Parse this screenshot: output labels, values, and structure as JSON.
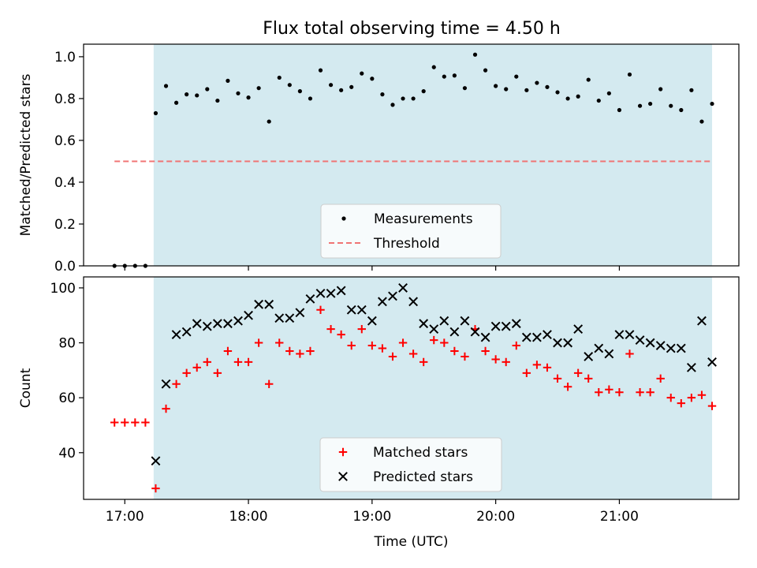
{
  "chart_data": [
    {
      "type": "scatter",
      "title": "Flux total observing time = 4.50 h",
      "xlabel": "",
      "ylabel": "Matched/Predicted stars",
      "ylim": [
        0,
        1.06
      ],
      "yticks": [
        "0.0",
        "0.2",
        "0.4",
        "0.6",
        "0.8",
        "1.0"
      ],
      "xlim": [
        "16:40",
        "21:58"
      ],
      "xticks": [
        "17:00",
        "18:00",
        "19:00",
        "20:00",
        "21:00"
      ],
      "show_xtick_labels": false,
      "shaded_interval": {
        "start": "17:14",
        "end": "21:45",
        "color": "#d4eaf0"
      },
      "legend_position": "lower-center",
      "series": [
        {
          "name": "Measurements",
          "marker": "dot",
          "color": "#000000",
          "points": [
            [
              "16:55",
              0.0
            ],
            [
              "17:00",
              0.0
            ],
            [
              "17:05",
              0.0
            ],
            [
              "17:10",
              0.0
            ],
            [
              "17:15",
              0.73
            ],
            [
              "17:20",
              0.86
            ],
            [
              "17:25",
              0.78
            ],
            [
              "17:30",
              0.82
            ],
            [
              "17:35",
              0.815
            ],
            [
              "17:40",
              0.845
            ],
            [
              "17:45",
              0.79
            ],
            [
              "17:50",
              0.885
            ],
            [
              "17:55",
              0.825
            ],
            [
              "18:00",
              0.805
            ],
            [
              "18:05",
              0.85
            ],
            [
              "18:10",
              0.69
            ],
            [
              "18:15",
              0.9
            ],
            [
              "18:20",
              0.865
            ],
            [
              "18:25",
              0.835
            ],
            [
              "18:30",
              0.8
            ],
            [
              "18:35",
              0.935
            ],
            [
              "18:40",
              0.865
            ],
            [
              "18:45",
              0.84
            ],
            [
              "18:50",
              0.855
            ],
            [
              "18:55",
              0.92
            ],
            [
              "19:00",
              0.895
            ],
            [
              "19:05",
              0.82
            ],
            [
              "19:10",
              0.77
            ],
            [
              "19:15",
              0.8
            ],
            [
              "19:20",
              0.8
            ],
            [
              "19:25",
              0.835
            ],
            [
              "19:30",
              0.95
            ],
            [
              "19:35",
              0.905
            ],
            [
              "19:40",
              0.91
            ],
            [
              "19:45",
              0.85
            ],
            [
              "19:50",
              1.01
            ],
            [
              "19:55",
              0.935
            ],
            [
              "20:00",
              0.86
            ],
            [
              "20:05",
              0.845
            ],
            [
              "20:10",
              0.905
            ],
            [
              "20:15",
              0.84
            ],
            [
              "20:20",
              0.875
            ],
            [
              "20:25",
              0.855
            ],
            [
              "20:30",
              0.83
            ],
            [
              "20:35",
              0.8
            ],
            [
              "20:40",
              0.81
            ],
            [
              "20:45",
              0.89
            ],
            [
              "20:50",
              0.79
            ],
            [
              "20:55",
              0.825
            ],
            [
              "21:00",
              0.745
            ],
            [
              "21:05",
              0.915
            ],
            [
              "21:10",
              0.765
            ],
            [
              "21:15",
              0.775
            ],
            [
              "21:20",
              0.845
            ],
            [
              "21:25",
              0.765
            ],
            [
              "21:30",
              0.745
            ],
            [
              "21:35",
              0.84
            ],
            [
              "21:40",
              0.69
            ],
            [
              "21:45",
              0.775
            ]
          ]
        },
        {
          "name": "Threshold",
          "line": "dashed",
          "color": "#f07474",
          "points": [
            [
              "16:55",
              0.5
            ],
            [
              "21:45",
              0.5
            ]
          ]
        }
      ]
    },
    {
      "type": "scatter",
      "title": "",
      "xlabel": "Time (UTC)",
      "ylabel": "Count",
      "ylim": [
        23,
        104
      ],
      "yticks": [
        "40",
        "60",
        "80",
        "100"
      ],
      "xlim": [
        "16:40",
        "21:58"
      ],
      "xticks": [
        "17:00",
        "18:00",
        "19:00",
        "20:00",
        "21:00"
      ],
      "show_xtick_labels": true,
      "shaded_interval": {
        "start": "17:14",
        "end": "21:45",
        "color": "#d4eaf0"
      },
      "legend_position": "lower-center",
      "series": [
        {
          "name": "Matched stars",
          "marker": "plus",
          "color": "#ff0000",
          "points": [
            [
              "16:55",
              51
            ],
            [
              "17:00",
              51
            ],
            [
              "17:05",
              51
            ],
            [
              "17:10",
              51
            ],
            [
              "17:15",
              27
            ],
            [
              "17:20",
              56
            ],
            [
              "17:25",
              65
            ],
            [
              "17:30",
              69
            ],
            [
              "17:35",
              71
            ],
            [
              "17:40",
              73
            ],
            [
              "17:45",
              69
            ],
            [
              "17:50",
              77
            ],
            [
              "17:55",
              73
            ],
            [
              "18:00",
              73
            ],
            [
              "18:05",
              80
            ],
            [
              "18:10",
              65
            ],
            [
              "18:15",
              80
            ],
            [
              "18:20",
              77
            ],
            [
              "18:25",
              76
            ],
            [
              "18:30",
              77
            ],
            [
              "18:35",
              92
            ],
            [
              "18:40",
              85
            ],
            [
              "18:45",
              83
            ],
            [
              "18:50",
              79
            ],
            [
              "18:55",
              85
            ],
            [
              "19:00",
              79
            ],
            [
              "19:05",
              78
            ],
            [
              "19:10",
              75
            ],
            [
              "19:15",
              80
            ],
            [
              "19:20",
              76
            ],
            [
              "19:25",
              73
            ],
            [
              "19:30",
              81
            ],
            [
              "19:35",
              80
            ],
            [
              "19:40",
              77
            ],
            [
              "19:45",
              75
            ],
            [
              "19:50",
              85
            ],
            [
              "19:55",
              77
            ],
            [
              "20:00",
              74
            ],
            [
              "20:05",
              73
            ],
            [
              "20:10",
              79
            ],
            [
              "20:15",
              69
            ],
            [
              "20:20",
              72
            ],
            [
              "20:25",
              71
            ],
            [
              "20:30",
              67
            ],
            [
              "20:35",
              64
            ],
            [
              "20:40",
              69
            ],
            [
              "20:45",
              67
            ],
            [
              "20:50",
              62
            ],
            [
              "20:55",
              63
            ],
            [
              "21:00",
              62
            ],
            [
              "21:05",
              76
            ],
            [
              "21:10",
              62
            ],
            [
              "21:15",
              62
            ],
            [
              "21:20",
              67
            ],
            [
              "21:25",
              60
            ],
            [
              "21:30",
              58
            ],
            [
              "21:35",
              60
            ],
            [
              "21:40",
              61
            ],
            [
              "21:45",
              57
            ]
          ]
        },
        {
          "name": "Predicted stars",
          "marker": "x",
          "color": "#000000",
          "points": [
            [
              "17:15",
              37
            ],
            [
              "17:20",
              65
            ],
            [
              "17:25",
              83
            ],
            [
              "17:30",
              84
            ],
            [
              "17:35",
              87
            ],
            [
              "17:40",
              86
            ],
            [
              "17:45",
              87
            ],
            [
              "17:50",
              87
            ],
            [
              "17:55",
              88
            ],
            [
              "18:00",
              90
            ],
            [
              "18:05",
              94
            ],
            [
              "18:10",
              94
            ],
            [
              "18:15",
              89
            ],
            [
              "18:20",
              89
            ],
            [
              "18:25",
              91
            ],
            [
              "18:30",
              96
            ],
            [
              "18:35",
              98
            ],
            [
              "18:40",
              98
            ],
            [
              "18:45",
              99
            ],
            [
              "18:50",
              92
            ],
            [
              "18:55",
              92
            ],
            [
              "19:00",
              88
            ],
            [
              "19:05",
              95
            ],
            [
              "19:10",
              97
            ],
            [
              "19:15",
              100
            ],
            [
              "19:20",
              95
            ],
            [
              "19:25",
              87
            ],
            [
              "19:30",
              85
            ],
            [
              "19:35",
              88
            ],
            [
              "19:40",
              84
            ],
            [
              "19:45",
              88
            ],
            [
              "19:50",
              84
            ],
            [
              "19:55",
              82
            ],
            [
              "20:00",
              86
            ],
            [
              "20:05",
              86
            ],
            [
              "20:10",
              87
            ],
            [
              "20:15",
              82
            ],
            [
              "20:20",
              82
            ],
            [
              "20:25",
              83
            ],
            [
              "20:30",
              80
            ],
            [
              "20:35",
              80
            ],
            [
              "20:40",
              85
            ],
            [
              "20:45",
              75
            ],
            [
              "20:50",
              78
            ],
            [
              "20:55",
              76
            ],
            [
              "21:00",
              83
            ],
            [
              "21:05",
              83
            ],
            [
              "21:10",
              81
            ],
            [
              "21:15",
              80
            ],
            [
              "21:20",
              79
            ],
            [
              "21:25",
              78
            ],
            [
              "21:30",
              78
            ],
            [
              "21:35",
              71
            ],
            [
              "21:40",
              88
            ],
            [
              "21:45",
              73
            ]
          ]
        }
      ]
    }
  ]
}
